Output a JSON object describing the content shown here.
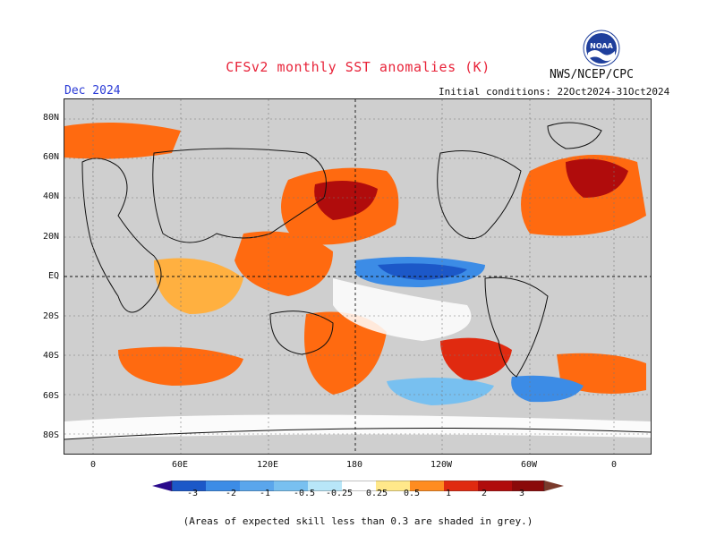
{
  "title": "CFSv2 monthly SST anomalies (K)",
  "period": "Dec 2024",
  "agency": "NWS/NCEP/CPC",
  "logo_text": "NOAA",
  "initial_conditions": "Initial conditions: 22Oct2024-31Oct2024",
  "lat_labels": [
    "80N",
    "60N",
    "40N",
    "20N",
    "EQ",
    "20S",
    "40S",
    "60S",
    "80S"
  ],
  "lon_labels": [
    "0",
    "60E",
    "120E",
    "180",
    "120W",
    "60W",
    "0"
  ],
  "colorbar": {
    "labels": [
      "-3",
      "-2",
      "-1",
      "-0.5",
      "-0.25",
      "0.25",
      "0.5",
      "1",
      "2",
      "3"
    ],
    "colors": [
      "#2a0a8c",
      "#1c58c8",
      "#3c8ce6",
      "#78c0f0",
      "#b8e6f8",
      "#ffffff",
      "#ffe88a",
      "#ffb040",
      "#ff6a10",
      "#e02a10",
      "#b00c0c",
      "#7a3a2c"
    ]
  },
  "footnote": "(Areas of expected skill less than 0.3 are shaded in grey.)",
  "colors": {
    "title": "#e8243a",
    "period": "#2b3bd6",
    "grey_mask": "#cfcfcf"
  }
}
